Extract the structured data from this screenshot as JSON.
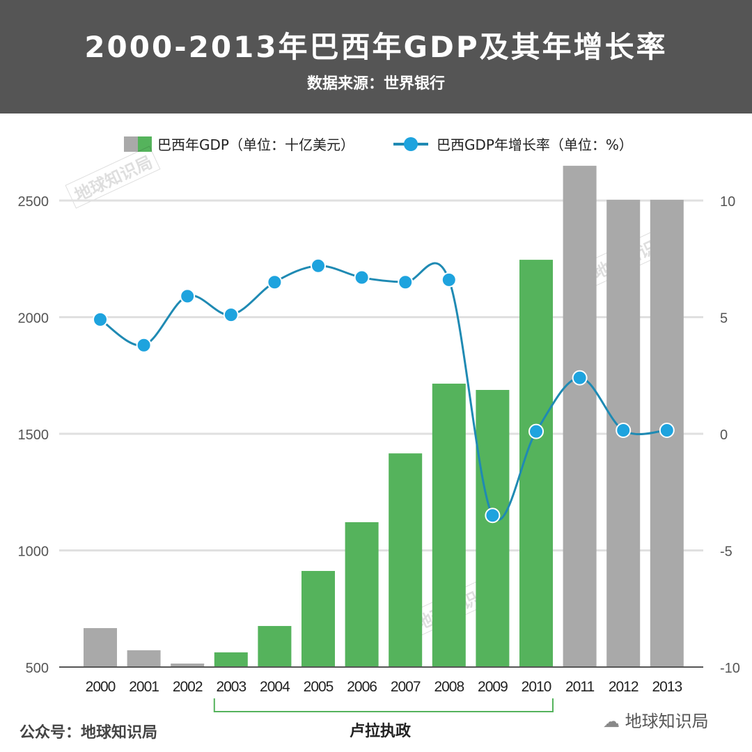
{
  "header": {
    "title": "2000-2013年巴西年GDP及其年增长率",
    "subtitle": "数据来源：世界银行"
  },
  "colors": {
    "green": "#55b35c",
    "grey": "#a9a9a9",
    "line": "#1f8ab3",
    "dot": "#1ea3de",
    "header_bg": "#555555"
  },
  "watermark": "地球知识局",
  "footer": {
    "left": "公众号：地球知识局",
    "right": "地球知识局",
    "bracket_label": "卢拉执政"
  },
  "chart_data": {
    "type": "bar+line",
    "title": "2000-2013年巴西年GDP及其年增长率",
    "categories": [
      "2000",
      "2001",
      "2002",
      "2003",
      "2004",
      "2005",
      "2006",
      "2007",
      "2008",
      "2009",
      "2010",
      "2011",
      "2012",
      "2013"
    ],
    "legend": {
      "bars": "巴西年GDP（单位：十亿美元）",
      "line": "巴西GDP年增长率（单位：%）",
      "placement": "top"
    },
    "series": [
      {
        "name": "巴西年GDP（单位：十亿美元）",
        "type": "bar",
        "axis": "left",
        "values": [
          667,
          572,
          515,
          563,
          676,
          912,
          1121,
          1416,
          1715,
          1688,
          2246,
          2649,
          2503,
          2503
        ],
        "highlight": [
          false,
          false,
          false,
          true,
          true,
          true,
          true,
          true,
          true,
          true,
          true,
          false,
          false,
          false
        ]
      },
      {
        "name": "巴西GDP年增长率（单位：%）",
        "type": "line",
        "axis": "right",
        "values": [
          4.9,
          3.8,
          5.9,
          5.1,
          6.5,
          7.2,
          6.7,
          6.5,
          6.6,
          -3.5,
          0.1,
          2.4,
          0.15,
          0.15
        ]
      }
    ],
    "y_left": {
      "ticks": [
        "500",
        "1000",
        "1500",
        "2000",
        "2500"
      ],
      "range": [
        500,
        2500
      ]
    },
    "y_right": {
      "ticks": [
        "-10",
        "-5",
        "0",
        "5",
        "10"
      ],
      "range": [
        -10,
        10
      ]
    },
    "grid": true,
    "annotation": {
      "text": "卢拉执政",
      "from": "2003",
      "to": "2010"
    }
  }
}
